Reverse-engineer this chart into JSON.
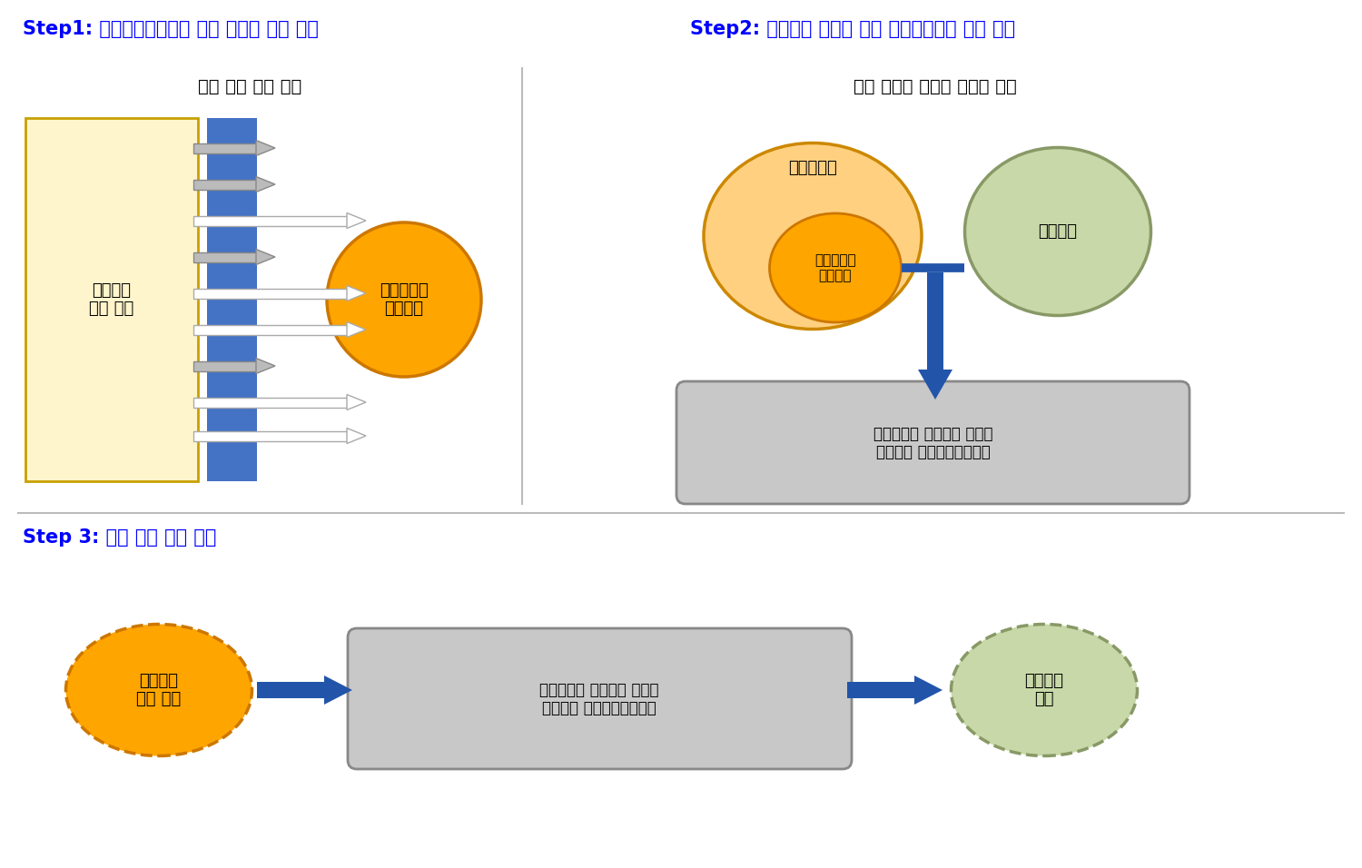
{
  "step1_title": "Step1: 기후예측모델에서 예측 가능한 변수 선정",
  "step2_title": "Step2: 미세먼지 예측을 위한 다중선형회귀 모델 구축",
  "step3_title": "Step 3: 최종 예측 정보 생산",
  "step1_subtitle": "모델 성능 평가 지표",
  "step2_subtitle": "과거 자료에 기반한 통계적 관계",
  "box1_text": "계절예측\n모델 결과",
  "circle1_text": "예측가능한\n기후변수",
  "circle2_outer_text": "기후변수들",
  "circle2_inner_text": "예측가능한\n기후변수",
  "circle3_text": "미세먼지",
  "rect2_text": "기후변수와 미세먼지 관계를\n설명하는 다중선형회귀모델",
  "step3_circle1_text": "기후변수\n예측 정보",
  "step3_rect_text": "기후변수와 미세먼지 관계를\n설명하는 다중선형회귀모델",
  "step3_circle2_text": "미세먼지\n예측",
  "title_color": "#0000FF",
  "box1_fill": "#FFF5CC",
  "box1_edge": "#C8A000",
  "blue_bar_color": "#4472C4",
  "circle1_fill": "#FFA500",
  "circle1_edge": "#CC7700",
  "circle2_outer_fill": "#FFD080",
  "circle2_outer_edge": "#CC8800",
  "circle3_fill": "#C8D8A8",
  "circle3_edge": "#889966",
  "rect2_fill": "#C8C8C8",
  "rect2_edge": "#888888",
  "step3_circle1_fill": "#FFA500",
  "step3_circle1_edge": "#CC7700",
  "step3_rect_fill": "#C8C8C8",
  "step3_rect_edge": "#888888",
  "step3_circle2_fill": "#C8D8A8",
  "step3_circle2_edge": "#889966",
  "arrow_blue": "#2255AA",
  "background": "#FFFFFF"
}
